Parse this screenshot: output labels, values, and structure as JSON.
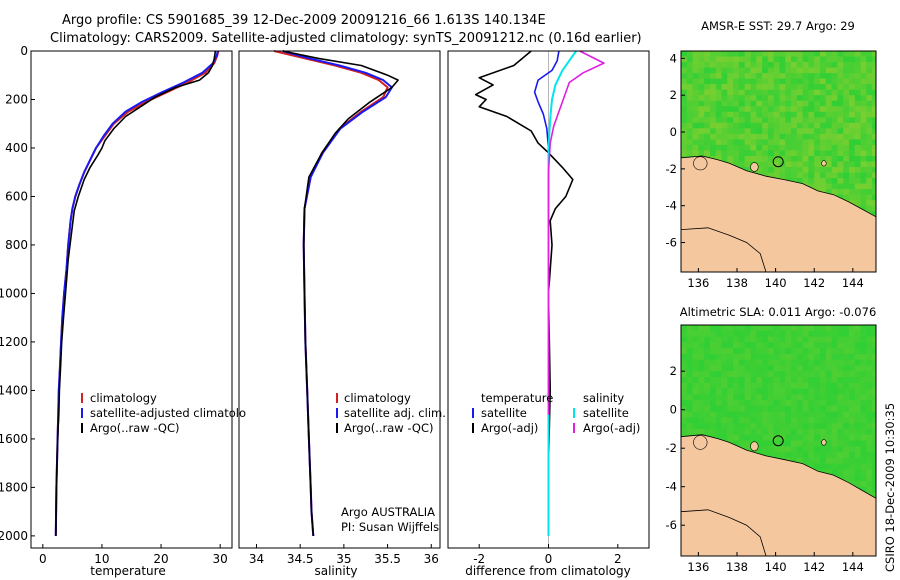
{
  "header": {
    "line1": "Argo profile: CS 5901685_39 12-Dec-2009 20091216_66 1.613S 140.134E",
    "line2": "Climatology: CARS2009. Satellite-adjusted climatology: synTS_20091212.nc (0.16d earlier)"
  },
  "colors": {
    "climatology": "#d42020",
    "satellite": "#1a1af0",
    "argo": "#000000",
    "salinity_satellite": "#00e5ee",
    "salinity_argo": "#e020e0",
    "ocean_warm": "#e06a10",
    "ocean_mid": "#8ccf30",
    "ocean_cool": "#2fcf35",
    "land": "#f5c79e"
  },
  "icons": {
    "float_position": "circle-marker-icon"
  },
  "chart_data": [
    {
      "type": "line",
      "id": "temperature",
      "xlabel": "temperature",
      "xlim": [
        -2,
        32
      ],
      "ylim": [
        2050,
        0
      ],
      "xticks": [
        0,
        10,
        20,
        30
      ],
      "yticks": [
        0,
        200,
        400,
        600,
        800,
        1000,
        1200,
        1400,
        1600,
        1800,
        2000
      ],
      "legend": [
        "climatology",
        "satellite-adjusted climatolo",
        "Argo(..raw -QC)"
      ],
      "legend_loc": "lower-right",
      "series": [
        {
          "name": "climatology",
          "x": [
            29.7,
            29.5,
            29.0,
            27.5,
            24.5,
            21.0,
            17.5,
            14.5,
            12.0,
            10.5,
            9.0,
            8.0,
            7.0,
            6.2,
            5.5,
            5.0,
            4.7,
            4.3,
            4.0,
            3.6,
            3.3,
            3.1,
            2.9,
            2.7,
            2.6,
            2.5,
            2.4,
            2.3,
            2.2
          ],
          "y": [
            0,
            20,
            50,
            90,
            130,
            170,
            210,
            250,
            300,
            350,
            400,
            450,
            500,
            550,
            600,
            650,
            700,
            800,
            900,
            1000,
            1100,
            1200,
            1300,
            1400,
            1500,
            1600,
            1700,
            1800,
            2000
          ]
        },
        {
          "name": "satellite-adjusted climatolo",
          "x": [
            29.6,
            29.4,
            28.8,
            27.0,
            23.8,
            20.2,
            16.8,
            14.0,
            11.8,
            10.3,
            9.0,
            8.0,
            7.0,
            6.2,
            5.5,
            5.0,
            4.7,
            4.3,
            4.0,
            3.6,
            3.3,
            3.1,
            2.9,
            2.7,
            2.6,
            2.5,
            2.4,
            2.3,
            2.2
          ],
          "y": [
            0,
            20,
            50,
            90,
            130,
            170,
            210,
            250,
            300,
            350,
            400,
            450,
            500,
            550,
            600,
            650,
            700,
            800,
            900,
            1000,
            1100,
            1200,
            1300,
            1400,
            1500,
            1600,
            1700,
            1800,
            2000
          ]
        },
        {
          "name": "Argo(..raw -QC)",
          "x": [
            29.2,
            29.0,
            28.7,
            28.0,
            26.5,
            22.5,
            19.0,
            16.5,
            14.0,
            12.0,
            10.5,
            10.0,
            9.3,
            8.0,
            7.0,
            6.0,
            5.3,
            4.8,
            4.3,
            3.9,
            3.5,
            3.2,
            3.0,
            2.8,
            2.7,
            2.5,
            2.4,
            2.3,
            2.2
          ],
          "y": [
            0,
            30,
            60,
            90,
            120,
            150,
            190,
            230,
            270,
            320,
            370,
            400,
            430,
            480,
            530,
            600,
            660,
            760,
            860,
            980,
            1100,
            1200,
            1300,
            1400,
            1500,
            1600,
            1700,
            1800,
            2000
          ]
        }
      ]
    },
    {
      "type": "line",
      "id": "salinity",
      "xlabel": "salinity",
      "xlim": [
        33.8,
        36.1
      ],
      "ylim": [
        2050,
        0
      ],
      "xticks": [
        34,
        34.5,
        35,
        35.5,
        36
      ],
      "legend": [
        "climatology",
        "satellite adj. clim.",
        "Argo(..raw -QC)"
      ],
      "legend_loc": "lower-right",
      "annotation": [
        "Argo AUSTRALIA",
        "PI: Susan Wijffels"
      ],
      "series": [
        {
          "name": "climatology",
          "x": [
            34.2,
            34.55,
            34.9,
            35.2,
            35.4,
            35.5,
            35.45,
            35.2,
            34.95,
            34.75,
            34.62,
            34.55,
            34.54,
            34.55,
            34.56,
            34.58,
            34.6,
            34.62,
            34.63,
            34.65
          ],
          "y": [
            0,
            30,
            60,
            90,
            120,
            150,
            190,
            250,
            320,
            420,
            520,
            650,
            800,
            1000,
            1200,
            1400,
            1600,
            1800,
            1900,
            2000
          ]
        },
        {
          "name": "satellite adj. clim.",
          "x": [
            34.3,
            34.6,
            34.95,
            35.25,
            35.45,
            35.55,
            35.48,
            35.22,
            34.96,
            34.76,
            34.62,
            34.55,
            34.54,
            34.55,
            34.56,
            34.58,
            34.6,
            34.62,
            34.63,
            34.65
          ],
          "y": [
            0,
            30,
            60,
            90,
            120,
            150,
            190,
            250,
            320,
            420,
            520,
            650,
            800,
            1000,
            1200,
            1400,
            1600,
            1800,
            1900,
            2000
          ]
        },
        {
          "name": "Argo(..raw -QC)",
          "x": [
            34.3,
            34.7,
            35.2,
            35.5,
            35.62,
            35.55,
            35.3,
            35.05,
            34.9,
            34.75,
            34.6,
            34.55,
            34.54,
            34.55,
            34.56,
            34.58,
            34.6,
            34.62,
            34.63,
            34.65
          ],
          "y": [
            0,
            30,
            60,
            100,
            120,
            150,
            210,
            280,
            340,
            420,
            520,
            650,
            800,
            1000,
            1200,
            1400,
            1600,
            1800,
            1900,
            2000
          ]
        }
      ]
    },
    {
      "type": "line",
      "id": "difference",
      "xlabel": "difference from climatology",
      "xlim": [
        -2.9,
        2.9
      ],
      "ylim": [
        2050,
        0
      ],
      "xticks": [
        -2,
        0,
        2
      ],
      "legend_temperature": [
        "temperature",
        "satellite",
        "Argo(-adj)"
      ],
      "legend_salinity": [
        "salinity",
        "satellite",
        "Argo(-adj)"
      ],
      "legend_loc": "lower",
      "series": [
        {
          "name": "temperature satellite",
          "x": [
            0.3,
            0.25,
            0.1,
            -0.3,
            -0.4,
            -0.3,
            -0.15,
            -0.05,
            0.0,
            0.0,
            0.0,
            0.0,
            0.0,
            0.0,
            0.0,
            0.0
          ],
          "y": [
            0,
            40,
            80,
            120,
            170,
            210,
            260,
            320,
            400,
            500,
            700,
            1000,
            1300,
            1600,
            1800,
            2000
          ]
        },
        {
          "name": "temperature Argo(-adj)",
          "x": [
            -0.5,
            -1.0,
            -2.0,
            -1.6,
            -2.1,
            -1.8,
            -2.0,
            -1.2,
            -0.5,
            -0.3,
            0.0,
            0.2,
            0.4,
            0.7,
            0.5,
            0.2,
            0.05,
            0.1,
            0.0,
            0.05,
            0.0
          ],
          "y": [
            0,
            60,
            110,
            140,
            180,
            200,
            230,
            270,
            330,
            380,
            420,
            450,
            480,
            530,
            600,
            650,
            700,
            800,
            1000,
            1400,
            1700
          ]
        },
        {
          "name": "salinity satellite",
          "x": [
            0.8,
            0.6,
            0.4,
            0.2,
            0.1,
            0.05,
            0.0,
            0.0,
            0.0,
            0.0,
            0.0
          ],
          "y": [
            0,
            40,
            80,
            140,
            200,
            280,
            400,
            700,
            1000,
            1500,
            2000
          ]
        },
        {
          "name": "salinity Argo(-adj)",
          "x": [
            0.9,
            1.6,
            1.0,
            0.6,
            0.45,
            0.3,
            0.15,
            0.05,
            0.0,
            0.0,
            0.0
          ],
          "y": [
            0,
            50,
            90,
            130,
            190,
            250,
            310,
            380,
            500,
            1000,
            1500
          ]
        }
      ]
    },
    {
      "type": "heatmap",
      "id": "sst_map",
      "title": "AMSR-E SST: 29.7  Argo: 29",
      "xlim": [
        135.1,
        145.2
      ],
      "ylim": [
        -7.6,
        4.4
      ],
      "xticks": [
        136,
        138,
        140,
        142,
        144
      ],
      "yticks": [
        -6,
        -4,
        -2,
        0,
        2,
        4
      ],
      "float_position": [
        140.134,
        -1.613
      ]
    },
    {
      "type": "heatmap",
      "id": "sla_map",
      "title": "Altimetric SLA: 0.011  Argo: -0.076",
      "xlim": [
        135.1,
        145.2
      ],
      "ylim": [
        -7.6,
        4.4
      ],
      "xticks": [
        136,
        138,
        140,
        142,
        144
      ],
      "yticks": [
        -6,
        -4,
        -2,
        0,
        2
      ],
      "float_position": [
        140.134,
        -1.613
      ]
    }
  ],
  "stamp": "CSIRO  18-Dec-2009 10:30:35"
}
